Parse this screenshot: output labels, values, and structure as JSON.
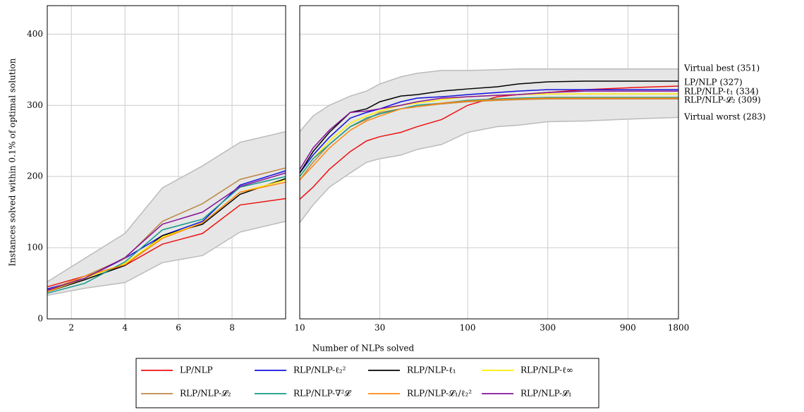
{
  "chart_data": {
    "type": "line",
    "y_label": "Instances solved within 0.1% of optimal solution",
    "x_label": "Number of NLPs solved",
    "ylim": [
      0,
      440
    ],
    "yticks": [
      0,
      100,
      200,
      300,
      400
    ],
    "grid": true,
    "band_color": "#e6e6e6",
    "band_line_color": "#bbbbbb",
    "series": [
      {
        "name": "LP/NLP",
        "color": "#ee1111"
      },
      {
        "name": "RLP/NLP-ℓ₂²",
        "color": "#1111dd"
      },
      {
        "name": "RLP/NLP-ℓ₁",
        "color": "#000000"
      },
      {
        "name": "RLP/NLP-ℓ∞",
        "color": "#ffee00"
      },
      {
        "name": "RLP/NLP-𝓛₂",
        "color": "#bb8844"
      },
      {
        "name": "RLP/NLP-∇²𝓛",
        "color": "#119988"
      },
      {
        "name": "RLP/NLP-𝓛₁/ℓ₂²",
        "color": "#ff8811"
      },
      {
        "name": "RLP/NLP-𝓛₁",
        "color": "#881199"
      }
    ],
    "annotations": [
      "Virtual best (351)",
      "LP/NLP (327)",
      "RLP/NLP-ℓ₁ (334)",
      "RLP/NLP-𝓛₂ (309)",
      "Virtual worst (283)"
    ],
    "panels": [
      {
        "xscale": "linear",
        "xlim": [
          1.1,
          10
        ],
        "xticks": [
          2,
          4,
          6,
          8
        ],
        "x": [
          1.1,
          2.5,
          4,
          5.4,
          6.9,
          8.3,
          10
        ],
        "band_upper": [
          52,
          85,
          120,
          184,
          215,
          248,
          263
        ],
        "band_lower": [
          33,
          43,
          51,
          79,
          89,
          122,
          137
        ],
        "series": [
          {
            "values": [
              45,
              60,
              75,
              105,
              120,
              160,
              169
            ]
          },
          {
            "values": [
              42,
              57,
              85,
              117,
              137,
              188,
              208
            ]
          },
          {
            "values": [
              38,
              55,
              75,
              117,
              133,
              175,
              197
            ]
          },
          {
            "values": [
              38,
              57,
              78,
              115,
              135,
              178,
              195
            ]
          },
          {
            "values": [
              40,
              60,
              85,
              137,
              162,
              196,
              212
            ]
          },
          {
            "values": [
              36,
              50,
              80,
              125,
              140,
              185,
              200
            ]
          },
          {
            "values": [
              38,
              60,
              76,
              113,
              135,
              178,
              192
            ]
          },
          {
            "values": [
              40,
              57,
              86,
              133,
              150,
              186,
              205
            ]
          }
        ]
      },
      {
        "xscale": "log",
        "xlim": [
          10,
          1800
        ],
        "xticks": [
          10,
          30,
          100,
          300,
          900,
          1800
        ],
        "x": [
          10,
          12,
          15,
          20,
          25,
          30,
          40,
          50,
          70,
          100,
          150,
          200,
          300,
          500,
          1000,
          1800
        ],
        "band_upper": [
          263,
          285,
          300,
          313,
          320,
          330,
          340,
          345,
          349,
          349,
          350,
          351,
          351,
          351,
          351,
          351
        ],
        "band_lower": [
          135,
          160,
          185,
          205,
          220,
          225,
          230,
          238,
          245,
          262,
          270,
          272,
          277,
          278,
          281,
          283
        ],
        "series": [
          {
            "values": [
              168,
              185,
              210,
              235,
              250,
              256,
              262,
              270,
              280,
              300,
              312,
              315,
              318,
              322,
              325,
              327
            ]
          },
          {
            "values": [
              205,
              230,
              255,
              282,
              290,
              295,
              305,
              310,
              312,
              315,
              318,
              320,
              322,
              322,
              322,
              322
            ]
          },
          {
            "values": [
              205,
              235,
              262,
              290,
              295,
              305,
              313,
              315,
              320,
              323,
              326,
              330,
              333,
              334,
              334,
              334
            ]
          },
          {
            "values": [
              200,
              225,
              250,
              275,
              285,
              292,
              300,
              303,
              308,
              312,
              314,
              315,
              316,
              316,
              316,
              316
            ]
          },
          {
            "values": [
              195,
              220,
              245,
              270,
              280,
              290,
              295,
              298,
              302,
              305,
              307,
              308,
              309,
              309,
              309,
              309
            ]
          },
          {
            "values": [
              200,
              225,
              245,
              270,
              282,
              288,
              295,
              300,
              303,
              307,
              309,
              310,
              311,
              311,
              311,
              311
            ]
          },
          {
            "values": [
              195,
              215,
              240,
              265,
              278,
              285,
              295,
              298,
              303,
              306,
              308,
              309,
              310,
              310,
              310,
              310
            ]
          },
          {
            "values": [
              210,
              240,
              265,
              290,
              292,
              295,
              300,
              305,
              310,
              312,
              314,
              315,
              318,
              320,
              320,
              320
            ]
          }
        ]
      }
    ]
  }
}
